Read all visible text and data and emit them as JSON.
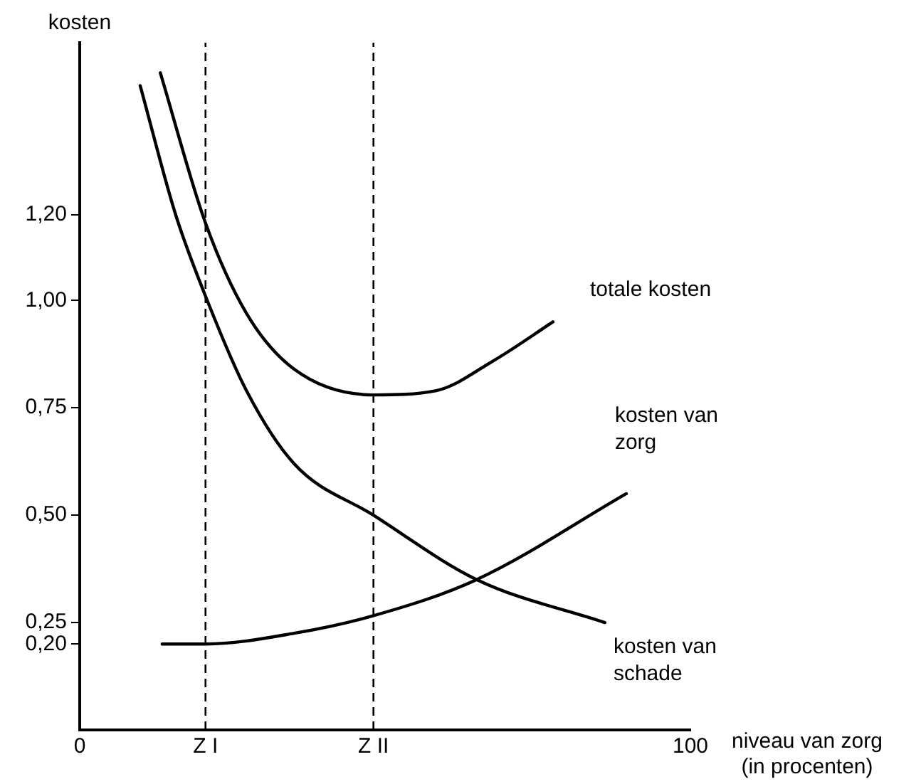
{
  "chart_data": {
    "type": "line",
    "xlabel": "niveau van zorg\n(in procenten)",
    "ylabel": "kosten",
    "xlim": [
      0,
      100
    ],
    "xticks": [
      0,
      {
        "value": 20.6,
        "label": "Z I"
      },
      {
        "value": 48.1,
        "label": "Z II"
      },
      100
    ],
    "ylim": [
      0,
      1.6
    ],
    "yticks": [
      {
        "value": 0.2,
        "label": "0,20"
      },
      {
        "value": 0.25,
        "label": "0,25"
      },
      {
        "value": 0.5,
        "label": "0,50"
      },
      {
        "value": 0.75,
        "label": "0,75"
      },
      {
        "value": 1,
        "label": "1,00"
      },
      {
        "value": 1.2,
        "label": "1,20"
      }
    ],
    "series": [
      {
        "name": "totale kosten",
        "color": "#000000",
        "x": [
          13.2,
          20.6,
          27.3,
          35.1,
          48.1,
          58.4,
          67.8,
          77.5
        ],
        "values": [
          1.53,
          1.18,
          0.97,
          0.84,
          0.78,
          0.79,
          0.86,
          0.95
        ]
      },
      {
        "name": "kosten van zorg",
        "color": "#000000",
        "x": [
          13.5,
          20.6,
          35.1,
          48.1,
          65,
          89.5
        ],
        "values": [
          0.2,
          0.2,
          0.225,
          0.266,
          0.35,
          0.55
        ]
      },
      {
        "name": "kosten van schade",
        "color": "#000000",
        "x": [
          9.9,
          15.7,
          20.6,
          27.3,
          35.1,
          48.1,
          65,
          86
        ],
        "values": [
          1.5,
          1.2,
          1.01,
          0.79,
          0.62,
          0.5,
          0.35,
          0.25
        ]
      }
    ],
    "ref_lines": [
      {
        "axis": "x",
        "value": 20.6,
        "line_style": "dashed",
        "color": "#000000"
      },
      {
        "axis": "x",
        "value": 48.1,
        "line_style": "dashed",
        "color": "#000000"
      }
    ],
    "grid": false,
    "legend": false,
    "marker": "none",
    "line_style": "solid"
  }
}
